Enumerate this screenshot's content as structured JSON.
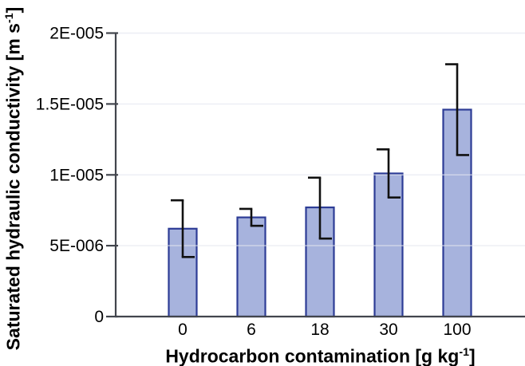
{
  "figure": {
    "y_axis_title": {
      "main": "Saturated hydraulic conductivity [m s",
      "sup": "-1",
      "close": "]"
    },
    "x_axis_title": {
      "main": "Hydrocarbon contamination [g kg",
      "sup": "-1",
      "close": "]"
    }
  },
  "chart_data": {
    "type": "bar",
    "title": "",
    "xlabel": "Hydrocarbon contamination [g kg⁻¹]",
    "ylabel": "Saturated hydraulic conductivity [m s⁻¹]",
    "categories": [
      "0",
      "6",
      "18",
      "30",
      "100"
    ],
    "values": [
      6.2e-06,
      7e-06,
      7.7e-06,
      1.01e-05,
      1.46e-05
    ],
    "error_upper": [
      8.2e-06,
      7.6e-06,
      9.8e-06,
      1.18e-05,
      1.78e-05
    ],
    "error_lower": [
      4.2e-06,
      6.4e-06,
      5.5e-06,
      8.4e-06,
      1.14e-05
    ],
    "ylim": [
      0,
      2e-05
    ],
    "ytick_values": [
      0,
      5e-06,
      1e-05,
      1.5e-05,
      2e-05
    ],
    "ytick_labels": [
      "0",
      "5E-006",
      "1E-005",
      "1.5E-005",
      "2E-005"
    ],
    "grid": true,
    "legend": false,
    "error_bar_style": "step-caps (upper cap left of line, lower cap right of line)",
    "colors": {
      "bar_fill": "#a7b3dd",
      "bar_border": "#2d3c96",
      "error_bar": "#111111",
      "axis": "#42454d",
      "gridline": "#e4e7f0",
      "text": "#000000"
    }
  }
}
